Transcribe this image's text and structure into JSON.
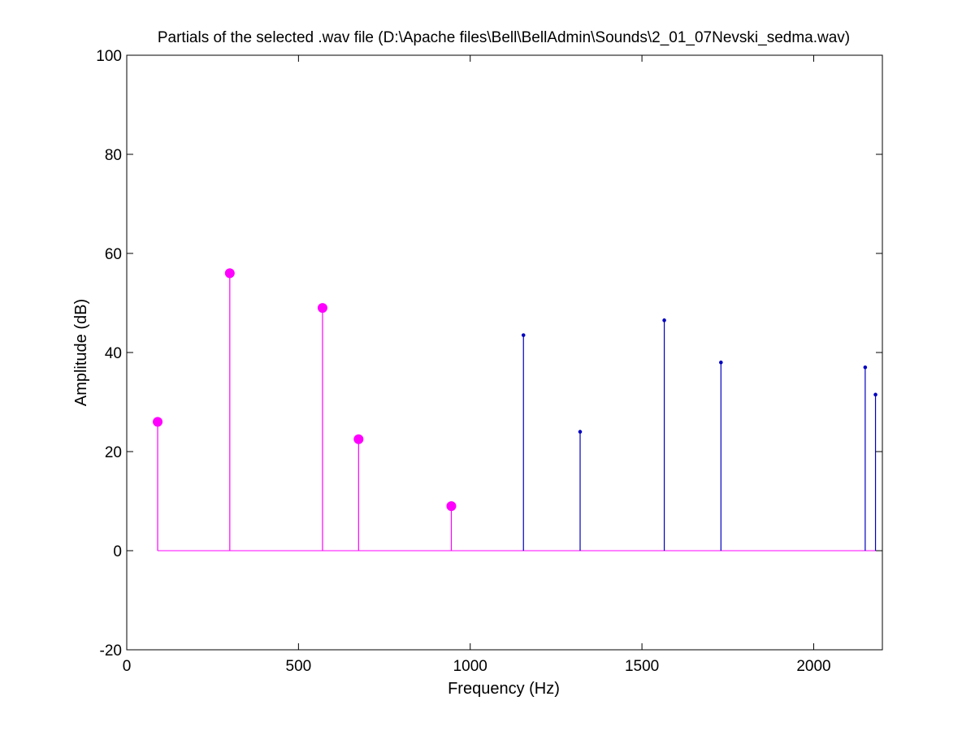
{
  "chart_data": {
    "type": "scatter",
    "title": "Partials of the selected .wav file (D:\\Apache files\\Bell\\BellAdmin\\Sounds\\2_01_07Nevski_sedma.wav)",
    "xlabel": "Frequency (Hz)",
    "ylabel": "Amplitude (dB)",
    "xlim": [
      0,
      2200
    ],
    "ylim": [
      -20,
      100
    ],
    "x_ticks": [
      0,
      500,
      1000,
      1500,
      2000
    ],
    "y_ticks": [
      -20,
      0,
      20,
      40,
      60,
      80,
      100
    ],
    "grid": false,
    "baseline": 0,
    "series": [
      {
        "color": "#ff00ff",
        "marker": "large-dot",
        "points": [
          {
            "x": 90,
            "y": 26
          },
          {
            "x": 300,
            "y": 56
          },
          {
            "x": 570,
            "y": 49
          },
          {
            "x": 675,
            "y": 22.5
          },
          {
            "x": 945,
            "y": 9
          }
        ]
      },
      {
        "color": "#0000c0",
        "marker": "small-dot",
        "points": [
          {
            "x": 1155,
            "y": 43.5
          },
          {
            "x": 1320,
            "y": 24
          },
          {
            "x": 1565,
            "y": 46.5
          },
          {
            "x": 1730,
            "y": 38
          },
          {
            "x": 2150,
            "y": 37
          },
          {
            "x": 2180,
            "y": 31.5
          }
        ]
      }
    ]
  }
}
